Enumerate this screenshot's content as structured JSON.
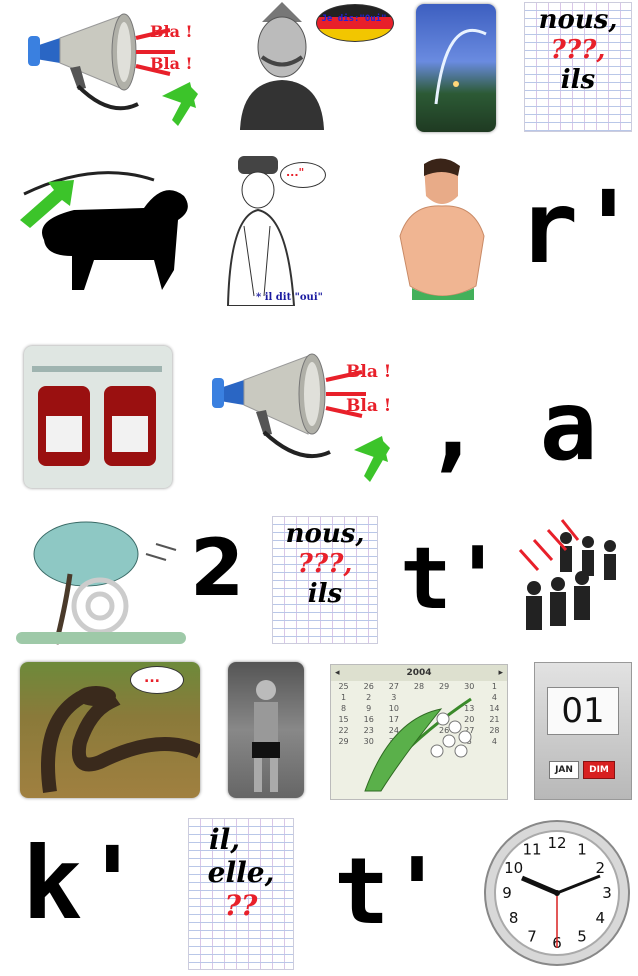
{
  "row1": {
    "megaphone_bubbles": [
      "Bla !",
      "Bla !"
    ],
    "speech_bubble": "Je dis:\"Oui\"",
    "paper_lines": [
      "nous,",
      "???,",
      "ils"
    ]
  },
  "row2": {
    "thought_bubble": "...\"",
    "caption": "* il dit \"oui\"",
    "letter": "r'"
  },
  "row3": {
    "megaphone_bubbles": [
      "Bla !",
      "Bla !"
    ],
    "comma_a": ", a"
  },
  "row4": {
    "digit": "2",
    "paper_lines": [
      "nous,",
      "???,",
      "ils"
    ],
    "letter": "t'"
  },
  "row5": {
    "snake_bubble": "...",
    "calendar": {
      "year": "2004",
      "rows": [
        [
          "25",
          "26",
          "27",
          "28",
          "29",
          "30",
          "1"
        ],
        [
          "1",
          "2",
          "3",
          "",
          "",
          "",
          "4"
        ],
        [
          "8",
          "9",
          "10",
          "",
          "",
          "13",
          "14"
        ],
        [
          "15",
          "16",
          "17",
          "",
          "",
          "20",
          "21"
        ],
        [
          "22",
          "23",
          "24",
          "25",
          "26",
          "27",
          "28"
        ],
        [
          "29",
          "30",
          "31",
          "",
          "",
          "3",
          "4"
        ]
      ]
    },
    "flip": {
      "day": "01",
      "month": "JAN",
      "weekday": "DIM"
    }
  },
  "row6": {
    "letter_k": "k'",
    "paper_lines": [
      "il,",
      "elle,",
      "??"
    ],
    "letter_t": "t'",
    "clock_numbers": [
      "12",
      "1",
      "2",
      "3",
      "4",
      "5",
      "6",
      "7",
      "8",
      "9",
      "10",
      "11"
    ]
  },
  "colors": {
    "green": "#3cc42a",
    "red": "#e8202a",
    "blue": "#1a1aa0"
  }
}
